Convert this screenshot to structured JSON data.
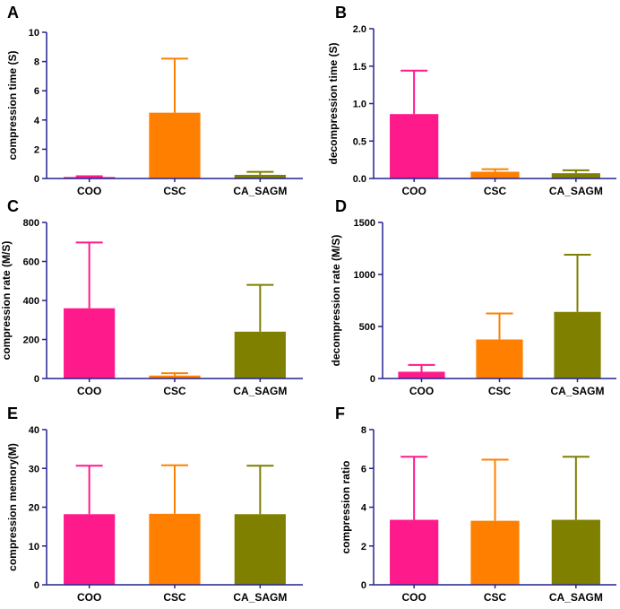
{
  "colors": {
    "COO": "#ff1a8c",
    "CSC": "#ff8000",
    "CA_SAGM": "#7f7f00",
    "axis": "#23238e",
    "text": "#000000"
  },
  "chart_data": [
    {
      "panel": "A",
      "type": "bar",
      "title": "",
      "ylabel": "compression time (S)",
      "xlabel": "",
      "categories": [
        "COO",
        "CSC",
        "CA_SAGM"
      ],
      "values": [
        0.1,
        4.5,
        0.25
      ],
      "errors": [
        0.05,
        3.7,
        0.2
      ],
      "ylim": [
        0,
        10
      ],
      "yticks": [
        0,
        2,
        4,
        6,
        8,
        10
      ],
      "ytick_labels": [
        "0",
        "2",
        "4",
        "6",
        "8",
        "10"
      ]
    },
    {
      "panel": "B",
      "type": "bar",
      "title": "",
      "ylabel": "decompression time (S)",
      "xlabel": "",
      "categories": [
        "COO",
        "CSC",
        "CA_SAGM"
      ],
      "values": [
        0.86,
        0.09,
        0.07
      ],
      "errors": [
        0.58,
        0.035,
        0.04
      ],
      "ylim": [
        0,
        2
      ],
      "yticks": [
        0,
        0.5,
        1,
        1.5,
        2
      ],
      "ytick_labels": [
        "0.0",
        "0.5",
        "1.0",
        "1.5",
        "2.0"
      ]
    },
    {
      "panel": "C",
      "type": "bar",
      "title": "",
      "ylabel": "compression rate (M/S)",
      "xlabel": "",
      "categories": [
        "COO",
        "CSC",
        "CA_SAGM"
      ],
      "values": [
        360,
        15,
        240
      ],
      "errors": [
        337,
        12,
        240
      ],
      "ylim": [
        0,
        800
      ],
      "yticks": [
        0,
        200,
        400,
        600,
        800
      ],
      "ytick_labels": [
        "0",
        "200",
        "400",
        "600",
        "800"
      ]
    },
    {
      "panel": "D",
      "type": "bar",
      "title": "",
      "ylabel": "decompression rate (M/S)",
      "xlabel": "",
      "categories": [
        "COO",
        "CSC",
        "CA_SAGM"
      ],
      "values": [
        65,
        375,
        640
      ],
      "errors": [
        65,
        250,
        550
      ],
      "ylim": [
        0,
        1500
      ],
      "yticks": [
        0,
        500,
        1000,
        1500
      ],
      "ytick_labels": [
        "0",
        "500",
        "1000",
        "1500"
      ]
    },
    {
      "panel": "E",
      "type": "bar",
      "title": "",
      "ylabel": "compression memory(M)",
      "xlabel": "",
      "categories": [
        "COO",
        "CSC",
        "CA_SAGM"
      ],
      "values": [
        18.2,
        18.3,
        18.2
      ],
      "errors": [
        12.5,
        12.5,
        12.5
      ],
      "ylim": [
        0,
        40
      ],
      "yticks": [
        0,
        10,
        20,
        30,
        40
      ],
      "ytick_labels": [
        "0",
        "10",
        "20",
        "30",
        "40"
      ]
    },
    {
      "panel": "F",
      "type": "bar",
      "title": "",
      "ylabel": "compression ratio",
      "xlabel": "",
      "categories": [
        "COO",
        "CSC",
        "CA_SAGM"
      ],
      "values": [
        3.35,
        3.3,
        3.35
      ],
      "errors": [
        3.25,
        3.15,
        3.25
      ],
      "ylim": [
        0,
        8
      ],
      "yticks": [
        0,
        2,
        4,
        6,
        8
      ],
      "ytick_labels": [
        "0",
        "2",
        "4",
        "6",
        "8"
      ]
    }
  ]
}
